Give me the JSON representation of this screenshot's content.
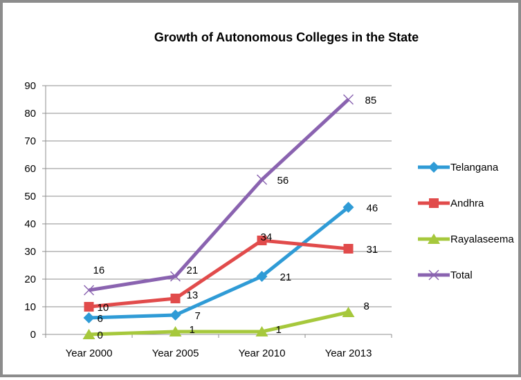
{
  "chart_data": {
    "type": "line",
    "title": "Growth of Autonomous Colleges in the State",
    "xlabel": "",
    "ylabel": "",
    "categories": [
      "Year 2000",
      "Year 2005",
      "Year 2010",
      "Year 2013"
    ],
    "ylim": [
      0,
      90
    ],
    "yticks": [
      0,
      10,
      20,
      30,
      40,
      50,
      60,
      70,
      80,
      90
    ],
    "grid": true,
    "legend_position": "right",
    "series": [
      {
        "name": "Telangana",
        "values": [
          6,
          7,
          21,
          46
        ],
        "labels": [
          "6",
          "7",
          "21",
          "46"
        ],
        "color": "#2f9bd6",
        "marker": "diamond"
      },
      {
        "name": "Andhra",
        "values": [
          10,
          13,
          34,
          31
        ],
        "labels": [
          "10",
          "13",
          "34",
          "31"
        ],
        "color": "#e14b4b",
        "marker": "square"
      },
      {
        "name": "Rayalaseema",
        "values": [
          0,
          1,
          1,
          8
        ],
        "labels": [
          "0",
          "1",
          "1",
          "8"
        ],
        "color": "#a6c83c",
        "marker": "triangle"
      },
      {
        "name": "Total",
        "values": [
          16,
          21,
          56,
          85
        ],
        "labels": [
          "16",
          "21",
          "56",
          "85"
        ],
        "color": "#8a63b0",
        "marker": "x"
      }
    ]
  }
}
